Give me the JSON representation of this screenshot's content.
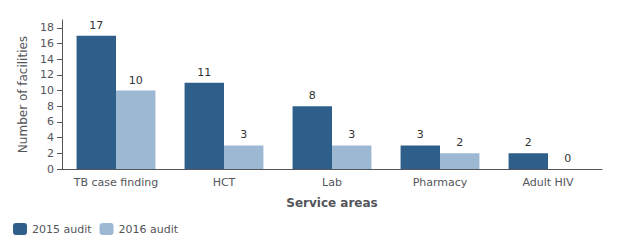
{
  "chart_data": {
    "type": "bar",
    "categories": [
      "TB case finding",
      "HCT",
      "Lab",
      "Pharmacy",
      "Adult HIV"
    ],
    "series": [
      {
        "name": "2015 audit",
        "color": "#2E5F8A",
        "values": [
          17,
          11,
          8,
          3,
          2
        ]
      },
      {
        "name": "2016 audit",
        "color": "#9DB8D2",
        "values": [
          10,
          3,
          3,
          2,
          0
        ]
      }
    ],
    "xlabel": "Service areas",
    "ylabel": "Number of facilities",
    "ylim": [
      0,
      19
    ],
    "yticks": [
      0,
      2,
      4,
      6,
      8,
      10,
      12,
      14,
      16,
      18
    ],
    "grid": false,
    "legend": "lower left",
    "data_labels": true
  }
}
